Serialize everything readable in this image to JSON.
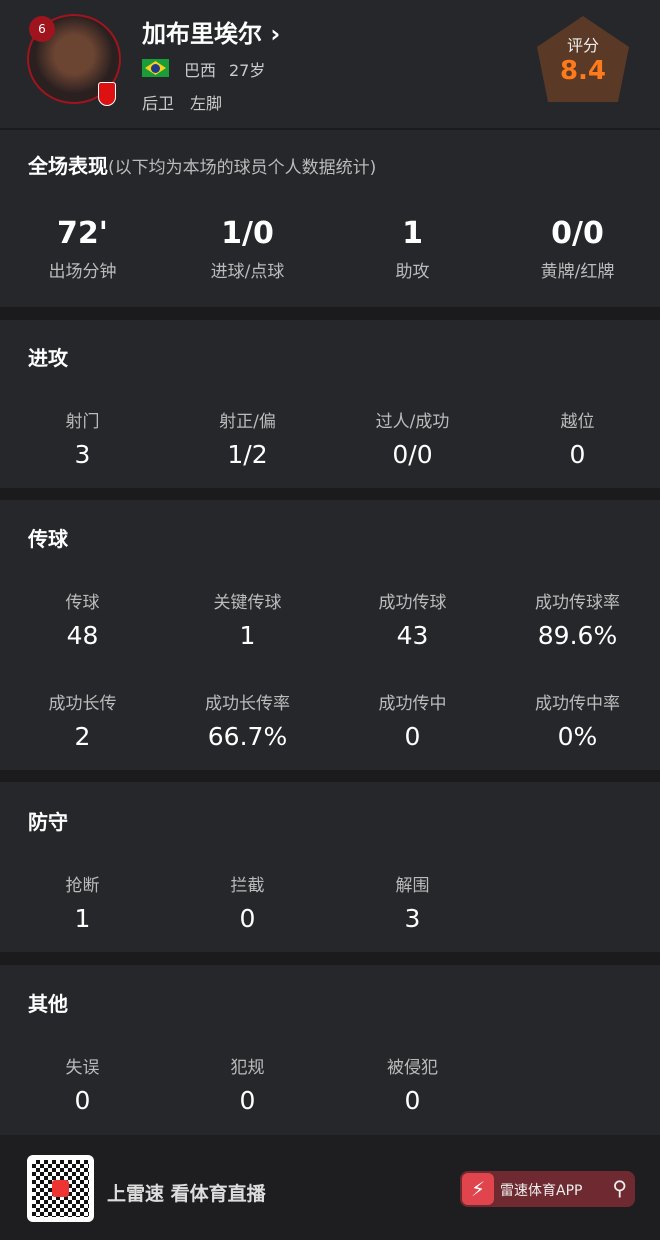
{
  "player": {
    "number": "6",
    "name": "加布里埃尔",
    "chevron": "›",
    "country": "巴西",
    "age": "27岁",
    "position": "后卫",
    "foot": "左脚",
    "rating_label": "评分",
    "rating": "8.4",
    "rating_color": "#ff7a1a"
  },
  "overview": {
    "title": "全场表现",
    "note": "(以下均为本场的球员个人数据统计)",
    "stats": [
      {
        "value": "72'",
        "label": "出场分钟"
      },
      {
        "value": "1/0",
        "label": "进球/点球"
      },
      {
        "value": "1",
        "label": "助攻"
      },
      {
        "value": "0/0",
        "label": "黄牌/红牌"
      }
    ]
  },
  "attack": {
    "title": "进攻",
    "stats": [
      {
        "label": "射门",
        "value": "3"
      },
      {
        "label": "射正/偏",
        "value": "1/2"
      },
      {
        "label": "过人/成功",
        "value": "0/0"
      },
      {
        "label": "越位",
        "value": "0"
      }
    ]
  },
  "passing": {
    "title": "传球",
    "stats": [
      {
        "label": "传球",
        "value": "48"
      },
      {
        "label": "关键传球",
        "value": "1"
      },
      {
        "label": "成功传球",
        "value": "43"
      },
      {
        "label": "成功传球率",
        "value": "89.6%"
      },
      {
        "label": "成功长传",
        "value": "2"
      },
      {
        "label": "成功长传率",
        "value": "66.7%"
      },
      {
        "label": "成功传中",
        "value": "0"
      },
      {
        "label": "成功传中率",
        "value": "0%"
      }
    ]
  },
  "defense": {
    "title": "防守",
    "stats": [
      {
        "label": "抢断",
        "value": "1"
      },
      {
        "label": "拦截",
        "value": "0"
      },
      {
        "label": "解围",
        "value": "3"
      }
    ]
  },
  "other": {
    "title": "其他",
    "stats": [
      {
        "label": "失误",
        "value": "0"
      },
      {
        "label": "犯规",
        "value": "0"
      },
      {
        "label": "被侵犯",
        "value": "0"
      }
    ]
  },
  "footer": {
    "slogan": "上雷速 看体育直播",
    "app_label": "雷速体育APP",
    "app_icon": "⚡",
    "search_icon": "⚲"
  }
}
